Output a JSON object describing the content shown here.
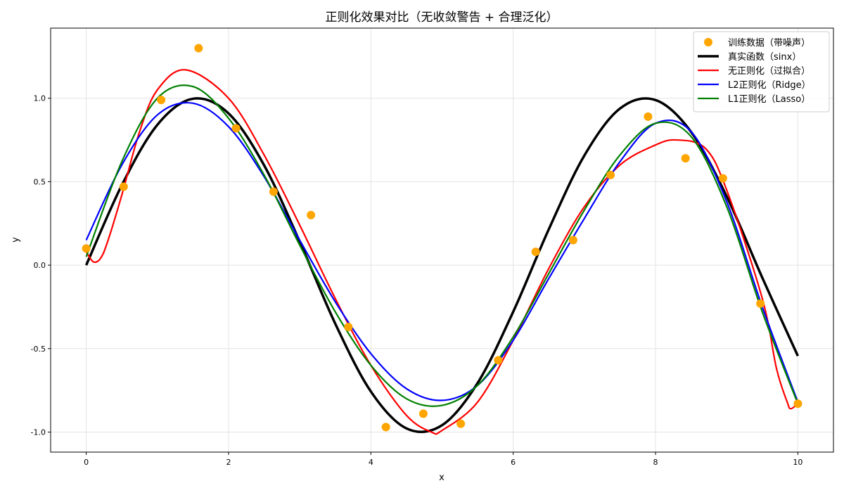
{
  "chart_data": {
    "type": "line",
    "title": "正则化效果对比（无收敛警告 + 合理泛化）",
    "xlabel": "x",
    "ylabel": "y",
    "xlim": [
      -0.5,
      10.5
    ],
    "ylim": [
      -1.12,
      1.42
    ],
    "xticks": [
      0,
      2,
      4,
      6,
      8,
      10
    ],
    "xtick_labels": [
      "0",
      "2",
      "4",
      "6",
      "8",
      "10"
    ],
    "yticks": [
      -1.0,
      -0.5,
      0.0,
      0.5,
      1.0
    ],
    "ytick_labels": [
      "-1.0",
      "-0.5",
      "0.0",
      "0.5",
      "1.0"
    ],
    "grid": true,
    "legend_position": "top-right",
    "scatter": {
      "name": "训练数据（带噪声）",
      "color": "#FFA500",
      "x": [
        0,
        0.526,
        1.053,
        1.579,
        2.105,
        2.632,
        3.158,
        3.684,
        4.211,
        4.737,
        5.263,
        5.789,
        6.316,
        6.842,
        7.368,
        7.895,
        8.421,
        8.947,
        9.474,
        10
      ],
      "y": [
        0.1,
        0.47,
        0.99,
        1.3,
        0.82,
        0.44,
        0.3,
        -0.37,
        -0.97,
        -0.89,
        -0.95,
        -0.57,
        0.08,
        0.15,
        0.54,
        0.89,
        0.64,
        0.52,
        -0.23,
        -0.83
      ]
    },
    "series": [
      {
        "name": "真实函数（sinx）",
        "color": "#000000",
        "width": 3.5,
        "x": [
          0,
          0.5,
          1,
          1.5,
          2,
          2.5,
          3,
          3.5,
          4,
          4.5,
          5,
          5.5,
          6,
          6.5,
          7,
          7.5,
          8,
          8.5,
          9,
          9.5,
          10
        ],
        "y": [
          0,
          0.479,
          0.841,
          0.997,
          0.909,
          0.598,
          0.141,
          -0.351,
          -0.757,
          -0.978,
          -0.959,
          -0.706,
          -0.279,
          0.215,
          0.657,
          0.938,
          0.989,
          0.798,
          0.412,
          -0.075,
          -0.544
        ]
      },
      {
        "name": "无正则化（过拟合）",
        "color": "#FF0000",
        "width": 2.2,
        "x": [
          0,
          0.1,
          0.2,
          0.3,
          0.5,
          0.75,
          1,
          1.4,
          2,
          2.5,
          3,
          3.5,
          4,
          4.5,
          4.85,
          5,
          5.5,
          6,
          6.5,
          7,
          7.5,
          8,
          8.3,
          8.7,
          9,
          9.5,
          9.7,
          9.85,
          9.9,
          10
        ],
        "y": [
          0.08,
          0.02,
          0.04,
          0.14,
          0.42,
          0.8,
          1.05,
          1.17,
          1.0,
          0.66,
          0.24,
          -0.2,
          -0.6,
          -0.9,
          -1.0,
          -0.99,
          -0.82,
          -0.45,
          -0.02,
          0.35,
          0.6,
          0.72,
          0.75,
          0.7,
          0.45,
          -0.2,
          -0.62,
          -0.82,
          -0.86,
          -0.83
        ]
      },
      {
        "name": "L2正则化（Ridge）",
        "color": "#0000FF",
        "width": 2.2,
        "x": [
          0,
          0.5,
          1,
          1.5,
          2,
          2.5,
          3,
          3.5,
          4,
          4.5,
          5,
          5.5,
          6,
          6.5,
          7,
          7.5,
          8,
          8.5,
          9,
          9.5,
          10
        ],
        "y": [
          0.15,
          0.6,
          0.9,
          0.97,
          0.83,
          0.53,
          0.15,
          -0.22,
          -0.53,
          -0.74,
          -0.81,
          -0.72,
          -0.45,
          -0.08,
          0.28,
          0.62,
          0.85,
          0.8,
          0.38,
          -0.25,
          -0.82
        ]
      },
      {
        "name": "L1正则化（Lasso）",
        "color": "#008000",
        "width": 2.2,
        "x": [
          0,
          0.5,
          1,
          1.5,
          2,
          2.5,
          3,
          3.5,
          4,
          4.5,
          5,
          5.5,
          6,
          6.5,
          7,
          7.5,
          8,
          8.5,
          9,
          9.5,
          10
        ],
        "y": [
          0.05,
          0.62,
          1.0,
          1.07,
          0.88,
          0.54,
          0.12,
          -0.28,
          -0.6,
          -0.8,
          -0.84,
          -0.72,
          -0.43,
          -0.05,
          0.33,
          0.66,
          0.85,
          0.77,
          0.35,
          -0.28,
          -0.83
        ]
      }
    ]
  }
}
